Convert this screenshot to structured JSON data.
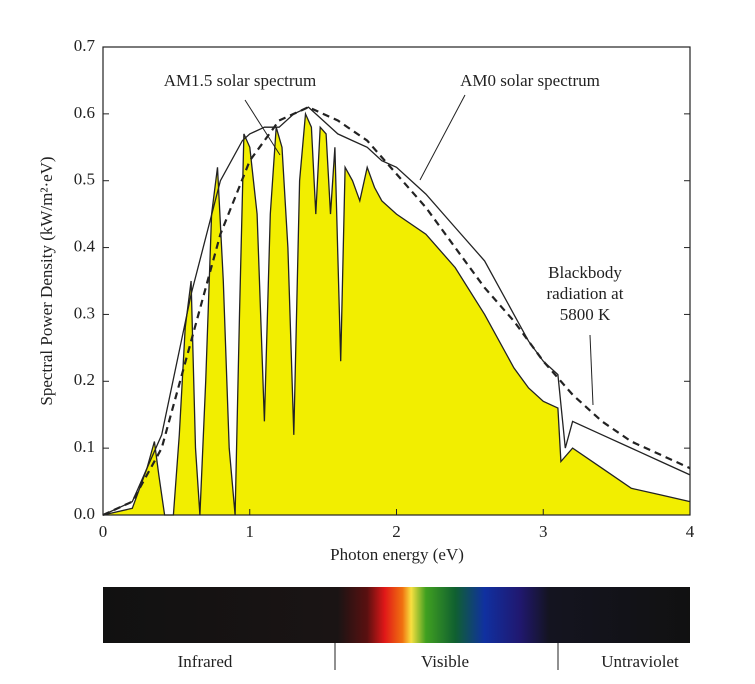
{
  "chart_data": {
    "type": "line",
    "x_label": "Photon energy (eV)",
    "y_label": "Spectral Power Density (kW/m²·eV)",
    "xlim": [
      0,
      4
    ],
    "xticks": [
      0,
      1,
      2,
      3,
      4
    ],
    "ylim": [
      0,
      0.7
    ],
    "yticks": [
      {
        "value": 0,
        "label": "0.0"
      },
      0.1,
      0.2,
      0.3,
      0.4,
      0.5,
      0.6,
      0.7
    ],
    "series": [
      {
        "name": "AM1.5 solar spectrum",
        "color": "#222222",
        "fill": "#f2ee00",
        "x": [
          0,
          0.2,
          0.3,
          0.35,
          0.38,
          0.42,
          0.48,
          0.52,
          0.56,
          0.6,
          0.63,
          0.66,
          0.7,
          0.74,
          0.78,
          0.82,
          0.86,
          0.9,
          0.93,
          0.96,
          1.0,
          1.05,
          1.1,
          1.14,
          1.18,
          1.22,
          1.26,
          1.3,
          1.34,
          1.38,
          1.42,
          1.45,
          1.48,
          1.52,
          1.55,
          1.58,
          1.62,
          1.65,
          1.7,
          1.75,
          1.8,
          1.85,
          1.9,
          2.0,
          2.2,
          2.4,
          2.6,
          2.8,
          2.9,
          3.0,
          3.1,
          3.12,
          3.2,
          3.4,
          3.6,
          3.8,
          4.0
        ],
        "values": [
          0,
          0.01,
          0.07,
          0.11,
          0.06,
          0,
          0,
          0.12,
          0.28,
          0.35,
          0.1,
          0,
          0.2,
          0.45,
          0.52,
          0.35,
          0.1,
          0,
          0.3,
          0.57,
          0.55,
          0.45,
          0.14,
          0.45,
          0.58,
          0.55,
          0.4,
          0.12,
          0.5,
          0.6,
          0.58,
          0.45,
          0.58,
          0.57,
          0.45,
          0.55,
          0.23,
          0.52,
          0.5,
          0.47,
          0.52,
          0.49,
          0.47,
          0.45,
          0.42,
          0.37,
          0.3,
          0.22,
          0.19,
          0.17,
          0.16,
          0.08,
          0.1,
          0.07,
          0.04,
          0.03,
          0.02
        ]
      },
      {
        "name": "AM0 solar spectrum",
        "color": "#222222",
        "x": [
          0,
          0.2,
          0.4,
          0.6,
          0.8,
          0.95,
          1.0,
          1.1,
          1.2,
          1.3,
          1.4,
          1.5,
          1.6,
          1.7,
          1.8,
          1.9,
          2.0,
          2.2,
          2.4,
          2.6,
          2.8,
          2.9,
          3.0,
          3.1,
          3.15,
          3.2,
          3.4,
          3.6,
          3.8,
          4.0
        ],
        "values": [
          0,
          0.02,
          0.12,
          0.33,
          0.5,
          0.56,
          0.57,
          0.58,
          0.58,
          0.6,
          0.61,
          0.59,
          0.57,
          0.56,
          0.55,
          0.53,
          0.52,
          0.48,
          0.43,
          0.38,
          0.3,
          0.26,
          0.23,
          0.21,
          0.1,
          0.14,
          0.12,
          0.1,
          0.08,
          0.06
        ]
      },
      {
        "name": "Blackbody radiation at 5800 K",
        "color": "#222222",
        "dash": true,
        "x": [
          0,
          0.2,
          0.4,
          0.6,
          0.8,
          1.0,
          1.2,
          1.4,
          1.6,
          1.8,
          2.0,
          2.2,
          2.4,
          2.6,
          2.8,
          3.0,
          3.2,
          3.4,
          3.6,
          3.8,
          4.0
        ],
        "values": [
          0,
          0.02,
          0.1,
          0.26,
          0.42,
          0.53,
          0.59,
          0.61,
          0.59,
          0.56,
          0.51,
          0.46,
          0.4,
          0.34,
          0.29,
          0.23,
          0.18,
          0.14,
          0.11,
          0.09,
          0.07
        ]
      }
    ],
    "spectrum_bands": [
      "Infrared",
      "Visible",
      "Untraviolet"
    ]
  }
}
